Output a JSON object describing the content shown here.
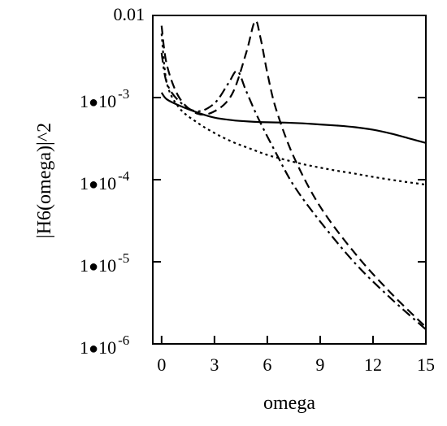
{
  "chart_data": {
    "type": "line",
    "xlabel": "omega",
    "ylabel": "|H6(omega)|^2",
    "xlim": [
      -0.5,
      15
    ],
    "ylim": [
      1e-06,
      0.01
    ],
    "yscale": "log",
    "grid": false,
    "x_ticks": [
      {
        "value": 0,
        "label": "0"
      },
      {
        "value": 3,
        "label": "3"
      },
      {
        "value": 6,
        "label": "6"
      },
      {
        "value": 9,
        "label": "9"
      },
      {
        "value": 12,
        "label": "12"
      },
      {
        "value": 15,
        "label": "15"
      }
    ],
    "y_ticks": [
      {
        "value": 0.01,
        "label": "0.01"
      },
      {
        "value": 0.001,
        "mantissa": "1",
        "base": "10",
        "exponent": "-3"
      },
      {
        "value": 0.0001,
        "mantissa": "1",
        "base": "10",
        "exponent": "-4"
      },
      {
        "value": 1e-05,
        "mantissa": "1",
        "base": "10",
        "exponent": "-5"
      },
      {
        "value": 1e-06,
        "mantissa": "1",
        "base": "10",
        "exponent": "-6"
      }
    ],
    "series": [
      {
        "style": "solid",
        "x": [
          0,
          0.3,
          1,
          2,
          3,
          4,
          5,
          6,
          7,
          8,
          9,
          10,
          11,
          12,
          13,
          14,
          15
        ],
        "y": [
          0.00115,
          0.00095,
          0.0008,
          0.00066,
          0.00057,
          0.00053,
          0.00051,
          0.0005,
          0.000495,
          0.000485,
          0.00047,
          0.000455,
          0.000435,
          0.000405,
          0.000365,
          0.00032,
          0.00028
        ]
      },
      {
        "style": "dotted",
        "x": [
          0,
          0.3,
          1,
          2,
          3,
          4,
          5,
          6,
          7,
          8,
          9,
          10,
          11,
          12,
          13,
          14,
          15
        ],
        "y": [
          0.006,
          0.0015,
          0.00075,
          0.0005,
          0.00037,
          0.00029,
          0.00024,
          0.0002,
          0.000175,
          0.000155,
          0.00014,
          0.000128,
          0.000118,
          0.000108,
          0.0001,
          9.3e-05,
          8.7e-05
        ]
      },
      {
        "style": "dash-dot",
        "x": [
          0,
          0.3,
          1,
          2,
          3,
          3.8,
          4.3,
          4.8,
          5.5,
          6.5,
          7.5,
          9,
          11,
          13,
          15
        ],
        "y": [
          0.0035,
          0.0015,
          0.0009,
          0.00068,
          0.00085,
          0.0015,
          0.0021,
          0.0012,
          0.00055,
          0.00021,
          8.5e-05,
          3.1e-05,
          9.5e-06,
          3.6e-06,
          1.5e-06
        ]
      },
      {
        "style": "dashed",
        "x": [
          0,
          0.3,
          1,
          2,
          3,
          4,
          4.8,
          5.3,
          5.6,
          6,
          6.5,
          7.5,
          9,
          11,
          13,
          15
        ],
        "y": [
          0.0075,
          0.0025,
          0.001,
          0.00064,
          0.00068,
          0.0011,
          0.0035,
          0.0085,
          0.0055,
          0.002,
          0.00072,
          0.00019,
          4.7e-05,
          1.25e-05,
          4.2e-06,
          1.6e-06
        ]
      }
    ]
  }
}
